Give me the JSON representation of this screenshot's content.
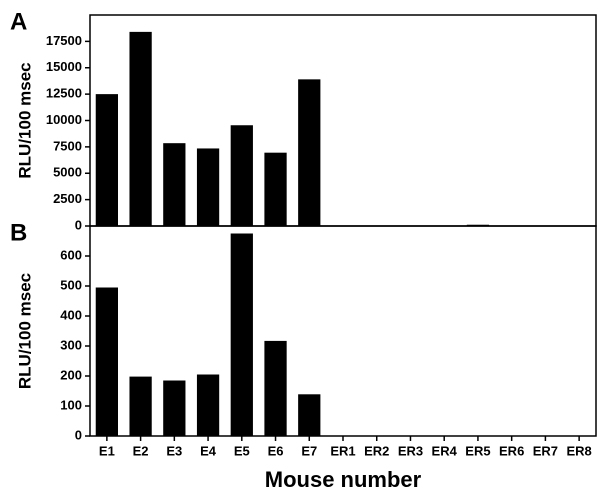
{
  "chart_data": [
    {
      "type": "bar",
      "panel": "A",
      "ylabel": "RLU/100 msec",
      "categories": [
        null,
        null,
        null,
        null,
        null,
        null,
        null,
        null,
        null,
        null,
        null,
        null,
        null,
        null,
        null
      ],
      "values": [
        12500,
        18400,
        7850,
        7350,
        9550,
        6950,
        13900,
        0,
        0,
        0,
        0,
        120,
        0,
        0,
        0
      ],
      "color": "#000000",
      "ylim": [
        0,
        20000
      ],
      "yticks": [
        0,
        2500,
        5000,
        7500,
        10000,
        12500,
        15000,
        17500
      ]
    },
    {
      "type": "bar",
      "panel": "B",
      "ylabel": "RLU/100 msec",
      "xlabel": "Mouse number",
      "categories": [
        "E1",
        "E2",
        "E3",
        "E4",
        "E5",
        "E6",
        "E7",
        "ER1",
        "ER2",
        "ER3",
        "ER4",
        "ER5",
        "ER6",
        "ER7",
        "ER8"
      ],
      "values": [
        495,
        198,
        185,
        205,
        675,
        317,
        139,
        0,
        0,
        0,
        0,
        0,
        0,
        0,
        0
      ],
      "color": "#000000",
      "ylim": [
        0,
        700
      ],
      "yticks": [
        0,
        100,
        200,
        300,
        400,
        500,
        600
      ]
    }
  ]
}
